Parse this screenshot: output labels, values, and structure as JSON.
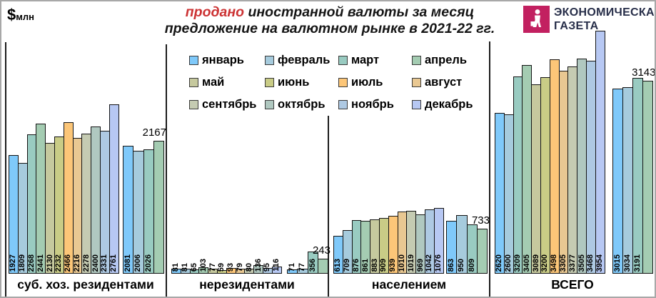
{
  "y_axis_label": {
    "symbol": "$",
    "unit": "млн"
  },
  "title": {
    "highlight": "продано",
    "line1_rest": " иностранной валюты за месяц",
    "line2": "предложение на валютном рынке в 2021-22 гг."
  },
  "logo": {
    "line1": "ЭКОНОМИЧЕСКАЯ",
    "line2": "ГАЗЕТА",
    "mark_color": "#c22060",
    "text_color": "#272e49"
  },
  "colors": {
    "title_highlight": "#cc3233",
    "bar_border": "#141414",
    "divider": "#1c1c1c"
  },
  "chart_data": {
    "type": "bar",
    "title": "продано иностранной валюты за месяц — предложение на валютном рынке в 2021-22 гг.",
    "unit": "$ млн",
    "legend_position": "top-center",
    "months": [
      "январь",
      "февраль",
      "март",
      "апрель",
      "май",
      "июнь",
      "июль",
      "август",
      "сентябрь",
      "октябрь",
      "ноябрь",
      "декабрь"
    ],
    "month_colors": [
      "#7fc9fa",
      "#a6cbdd",
      "#99cbc1",
      "#a4ccb2",
      "#c6c99e",
      "#c9cc86",
      "#fcc678",
      "#e9c892",
      "#c5cbb2",
      "#b0c8c0",
      "#aec9e3",
      "#b7c8f3"
    ],
    "months_2022_shown": [
      "январь",
      "февраль",
      "март",
      "апрель"
    ],
    "note": "last 2022 bar (апрель) is labeled above the bar",
    "groups": [
      {
        "label": "суб. хоз. резидентами",
        "values_2021": [
          1927,
          1809,
          2268,
          2441,
          2130,
          2232,
          2466,
          2216,
          2278,
          2400,
          2331,
          2761
        ],
        "values_2022": [
          2081,
          2006,
          2026,
          2167
        ]
      },
      {
        "label": "нерезидентами",
        "values_2021": [
          81,
          81,
          65,
          103,
          77,
          59,
          93,
          79,
          80,
          136,
          95,
          116
        ],
        "values_2022": [
          71,
          77,
          356,
          243
        ]
      },
      {
        "label": "населением",
        "values_2021": [
          613,
          709,
          876,
          861,
          883,
          909,
          939,
          1010,
          1019,
          969,
          1042,
          1076
        ],
        "values_2022": [
          863,
          950,
          809,
          733
        ]
      },
      {
        "label": "ВСЕГО",
        "values_2021": [
          2620,
          2600,
          3209,
          3405,
          3089,
          3200,
          3498,
          3305,
          3377,
          3505,
          3468,
          3954
        ],
        "values_2022": [
          3015,
          3034,
          3191,
          3143
        ]
      }
    ]
  }
}
